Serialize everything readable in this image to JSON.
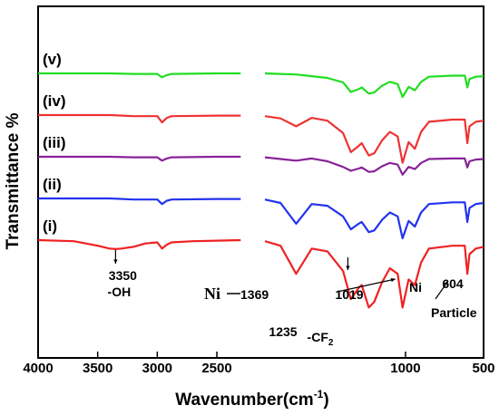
{
  "chart_data": {
    "type": "line",
    "title": "",
    "xlabel": "Wavenumber(cm",
    "xlabel_sup": "-1",
    "xlabel_close": ")",
    "ylabel": "Transmittance %",
    "xlim": [
      4000,
      500
    ],
    "x_reversed": true,
    "x_break": [
      2150,
      1900
    ],
    "x_ticks": [
      4000,
      3500,
      3000,
      2500,
      1000,
      500
    ],
    "x_tick_labels": [
      "4000",
      "3500",
      "3000",
      "2500",
      "1000",
      "500"
    ],
    "grid": false,
    "series": [
      {
        "name": "(v)",
        "color": "#22dd22",
        "offset": 4,
        "x": [
          4000,
          3500,
          3400,
          3200,
          3000,
          2960,
          2920,
          2880,
          2500,
          2300,
          2100,
          1900,
          1800,
          1700,
          1600,
          1500,
          1400,
          1350,
          1300,
          1280,
          1235,
          1200,
          1150,
          1100,
          1050,
          1019,
          980,
          940,
          900,
          850,
          700,
          620,
          604,
          590,
          550,
          500
        ],
        "y": [
          0.0,
          0.0,
          0.0,
          0.01,
          0.01,
          0.07,
          0.03,
          0.01,
          0.0,
          0.0,
          0.0,
          0.0,
          0.01,
          0.02,
          0.05,
          0.08,
          0.16,
          0.33,
          0.28,
          0.25,
          0.36,
          0.34,
          0.22,
          0.15,
          0.19,
          0.42,
          0.24,
          0.3,
          0.15,
          0.06,
          0.04,
          0.04,
          0.25,
          0.1,
          0.06,
          0.05
        ]
      },
      {
        "name": "(iv)",
        "color": "#ee3333",
        "offset": 3,
        "x": [
          4000,
          3500,
          3400,
          3200,
          3000,
          2960,
          2920,
          2880,
          2500,
          2300,
          2100,
          1900,
          1800,
          1700,
          1600,
          1500,
          1400,
          1350,
          1300,
          1280,
          1235,
          1200,
          1150,
          1100,
          1050,
          1019,
          980,
          940,
          900,
          850,
          700,
          620,
          604,
          590,
          550,
          500
        ],
        "y": [
          0.0,
          0.0,
          0.0,
          0.02,
          0.02,
          0.13,
          0.05,
          0.02,
          0.01,
          0.01,
          0.0,
          0.02,
          0.06,
          0.2,
          0.05,
          0.1,
          0.32,
          0.66,
          0.55,
          0.5,
          0.72,
          0.68,
          0.45,
          0.3,
          0.38,
          0.85,
          0.48,
          0.6,
          0.3,
          0.12,
          0.08,
          0.08,
          0.5,
          0.2,
          0.12,
          0.1
        ]
      },
      {
        "name": "(iii)",
        "color": "#882299",
        "offset": 2,
        "x": [
          4000,
          3500,
          3400,
          3200,
          3000,
          2960,
          2920,
          2880,
          2500,
          2300,
          2100,
          1900,
          1800,
          1700,
          1600,
          1500,
          1400,
          1350,
          1300,
          1280,
          1235,
          1200,
          1150,
          1100,
          1050,
          1019,
          980,
          940,
          900,
          850,
          700,
          620,
          604,
          590,
          550,
          500
        ],
        "y": [
          0.0,
          0.0,
          0.0,
          0.01,
          0.01,
          0.07,
          0.03,
          0.01,
          0.0,
          0.0,
          0.0,
          0.01,
          0.04,
          0.07,
          0.03,
          0.08,
          0.18,
          0.25,
          0.21,
          0.19,
          0.27,
          0.26,
          0.17,
          0.11,
          0.14,
          0.32,
          0.18,
          0.22,
          0.11,
          0.04,
          0.03,
          0.03,
          0.19,
          0.08,
          0.05,
          0.04
        ]
      },
      {
        "name": "(ii)",
        "color": "#2233ee",
        "offset": 1,
        "x": [
          4000,
          3500,
          3400,
          3200,
          3000,
          2960,
          2920,
          2880,
          2500,
          2300,
          2100,
          1900,
          1800,
          1700,
          1600,
          1500,
          1400,
          1350,
          1300,
          1280,
          1235,
          1200,
          1150,
          1100,
          1050,
          1019,
          980,
          940,
          900,
          850,
          700,
          620,
          604,
          590,
          550,
          500
        ],
        "y": [
          0.0,
          0.0,
          0.0,
          0.02,
          0.02,
          0.1,
          0.04,
          0.02,
          0.01,
          0.01,
          0.0,
          0.02,
          0.08,
          0.45,
          0.1,
          0.13,
          0.32,
          0.55,
          0.45,
          0.42,
          0.6,
          0.57,
          0.38,
          0.25,
          0.32,
          0.71,
          0.4,
          0.5,
          0.25,
          0.1,
          0.07,
          0.07,
          0.42,
          0.17,
          0.1,
          0.08
        ]
      },
      {
        "name": "(i)",
        "color": "#ee2222",
        "offset": 0,
        "x": [
          4000,
          3700,
          3500,
          3400,
          3350,
          3300,
          3200,
          3100,
          3000,
          2960,
          2920,
          2880,
          2700,
          2500,
          2300,
          2100,
          1900,
          1800,
          1700,
          1600,
          1500,
          1400,
          1350,
          1300,
          1280,
          1235,
          1200,
          1150,
          1100,
          1050,
          1019,
          980,
          940,
          900,
          850,
          700,
          620,
          604,
          590,
          550,
          500
        ],
        "y": [
          0.0,
          0.02,
          0.1,
          0.15,
          0.16,
          0.15,
          0.12,
          0.06,
          0.04,
          0.15,
          0.08,
          0.04,
          0.02,
          0.01,
          0.0,
          0.0,
          0.02,
          0.1,
          0.6,
          0.15,
          0.2,
          0.55,
          1.05,
          0.85,
          0.8,
          1.2,
          1.1,
          0.75,
          0.5,
          0.6,
          1.2,
          0.7,
          0.8,
          0.4,
          0.15,
          0.1,
          0.1,
          0.6,
          0.25,
          0.15,
          0.12
        ]
      }
    ],
    "annotations": [
      {
        "label": "3350",
        "label2": "-OH",
        "x": 3350
      },
      {
        "label": "1369",
        "prefix": "Ni",
        "x": 1369
      },
      {
        "label": "1235",
        "x": 1235
      },
      {
        "label": "1019",
        "label2": "-CF",
        "sub": "2",
        "x": 1019
      },
      {
        "label": "604",
        "prefix": "Ni",
        "label2": "Particle",
        "x": 604
      }
    ]
  }
}
